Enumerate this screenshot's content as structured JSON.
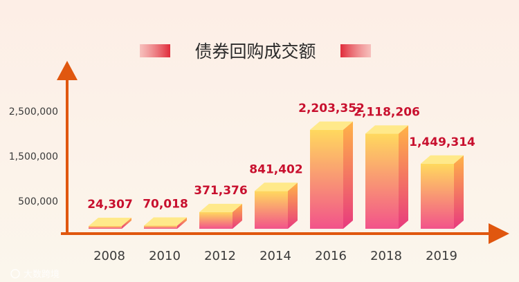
{
  "colors": {
    "background_top": "#fdeee6",
    "background_bottom": "#fbf5ea",
    "axis": "#e0570f",
    "value_label": "#c8102e",
    "bar_top": "#ffd95e",
    "bar_bottom": "#f0458c",
    "title_banner": "#e02b3a"
  },
  "watermark": "大数跨境",
  "chart_data": {
    "type": "bar",
    "title": "债券回购成交额",
    "categories": [
      "2008",
      "2010",
      "2012",
      "2014",
      "2016",
      "2018",
      "2019"
    ],
    "values": [
      24307,
      70018,
      371376,
      841402,
      2203352,
      2118206,
      1449314
    ],
    "value_labels": [
      "24,307",
      "70,018",
      "371,376",
      "841,402",
      "2,203,352",
      "2,118,206",
      "1,449,314"
    ],
    "yticks": [
      {
        "value": 500000,
        "label": "500,000"
      },
      {
        "value": 1500000,
        "label": "1,500,000"
      },
      {
        "value": 2500000,
        "label": "2,500,000"
      }
    ],
    "grid": false,
    "legend": "none"
  }
}
